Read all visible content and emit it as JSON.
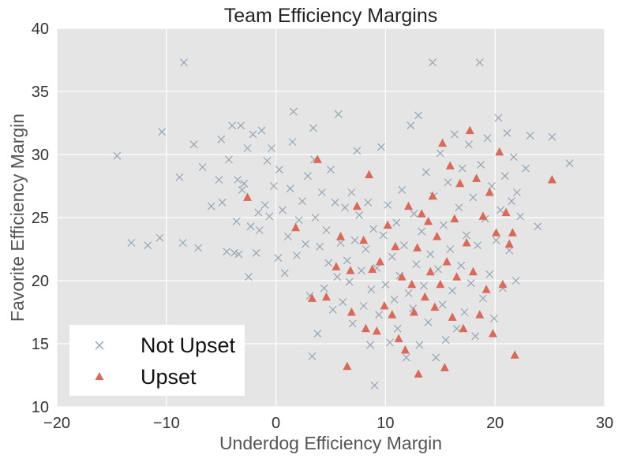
{
  "chart_data": {
    "type": "scatter",
    "title": "Team Efficiency Margins",
    "xlabel": "Underdog Efficiency Margin",
    "ylabel": "Favorite Efficiency Margin",
    "xlim": [
      -20,
      30
    ],
    "ylim": [
      10,
      40
    ],
    "xticks": [
      -20,
      -10,
      0,
      10,
      20,
      30
    ],
    "yticks": [
      10,
      15,
      20,
      25,
      30,
      35,
      40
    ],
    "grid": true,
    "legend_position": "bottom-left",
    "background": "#e5e5e5",
    "series": [
      {
        "name": "Not Upset",
        "marker": "x",
        "color": "#95a5b1",
        "points": [
          [
            -14.5,
            29.9
          ],
          [
            -13.2,
            23.0
          ],
          [
            -11.7,
            22.8
          ],
          [
            -10.6,
            23.4
          ],
          [
            -10.4,
            31.8
          ],
          [
            -8.8,
            28.2
          ],
          [
            -8.5,
            23.0
          ],
          [
            -8.4,
            37.3
          ],
          [
            -7.5,
            30.8
          ],
          [
            -7.1,
            22.6
          ],
          [
            -6.7,
            29.0
          ],
          [
            -5.9,
            25.9
          ],
          [
            -5.2,
            28.0
          ],
          [
            -5.0,
            31.2
          ],
          [
            -4.9,
            26.2
          ],
          [
            -4.5,
            22.3
          ],
          [
            -4.3,
            29.6
          ],
          [
            -4.0,
            32.3
          ],
          [
            -3.8,
            22.2
          ],
          [
            -3.6,
            24.7
          ],
          [
            -3.5,
            28.0
          ],
          [
            -3.4,
            22.1
          ],
          [
            -3.2,
            32.3
          ],
          [
            -3.1,
            27.2
          ],
          [
            -2.9,
            27.7
          ],
          [
            -2.6,
            30.5
          ],
          [
            -2.5,
            20.3
          ],
          [
            -2.3,
            24.3
          ],
          [
            -2.1,
            31.6
          ],
          [
            -1.8,
            22.2
          ],
          [
            -1.6,
            25.4
          ],
          [
            -1.5,
            24.0
          ],
          [
            -1.3,
            31.9
          ],
          [
            -1.0,
            26.0
          ],
          [
            -0.8,
            29.5
          ],
          [
            -0.6,
            25.1
          ],
          [
            -0.4,
            30.5
          ],
          [
            -0.2,
            27.5
          ],
          [
            0.2,
            21.8
          ],
          [
            0.3,
            28.8
          ],
          [
            0.6,
            25.6
          ],
          [
            0.8,
            20.6
          ],
          [
            1.1,
            23.5
          ],
          [
            1.3,
            27.3
          ],
          [
            1.5,
            31.0
          ],
          [
            1.6,
            33.4
          ],
          [
            1.9,
            22.0
          ],
          [
            2.1,
            24.8
          ],
          [
            2.4,
            26.3
          ],
          [
            2.7,
            22.9
          ],
          [
            2.9,
            28.3
          ],
          [
            3.1,
            18.8
          ],
          [
            3.3,
            14.0
          ],
          [
            3.4,
            32.1
          ],
          [
            3.5,
            29.6
          ],
          [
            3.6,
            25.0
          ],
          [
            3.8,
            15.8
          ],
          [
            4.0,
            22.7
          ],
          [
            4.2,
            27.0
          ],
          [
            4.4,
            19.4
          ],
          [
            4.6,
            24.0
          ],
          [
            4.8,
            21.4
          ],
          [
            5.0,
            28.8
          ],
          [
            5.2,
            17.7
          ],
          [
            5.4,
            26.2
          ],
          [
            5.6,
            20.3
          ],
          [
            5.7,
            33.2
          ],
          [
            5.9,
            23.0
          ],
          [
            6.1,
            18.3
          ],
          [
            6.3,
            25.8
          ],
          [
            6.5,
            21.6
          ],
          [
            6.7,
            19.9
          ],
          [
            6.9,
            27.0
          ],
          [
            7.0,
            16.6
          ],
          [
            7.2,
            23.2
          ],
          [
            7.4,
            30.3
          ],
          [
            7.6,
            25.2
          ],
          [
            7.8,
            20.8
          ],
          [
            8.0,
            18.0
          ],
          [
            8.2,
            22.5
          ],
          [
            8.4,
            26.2
          ],
          [
            8.6,
            14.9
          ],
          [
            8.7,
            19.3
          ],
          [
            8.9,
            24.1
          ],
          [
            9.0,
            11.7
          ],
          [
            9.2,
            21.0
          ],
          [
            9.4,
            17.3
          ],
          [
            9.6,
            30.6
          ],
          [
            9.8,
            23.6
          ],
          [
            10.0,
            19.7
          ],
          [
            10.2,
            26.0
          ],
          [
            10.4,
            15.1
          ],
          [
            10.6,
            21.9
          ],
          [
            10.8,
            18.5
          ],
          [
            11.0,
            24.6
          ],
          [
            11.1,
            16.2
          ],
          [
            11.3,
            20.4
          ],
          [
            11.5,
            27.2
          ],
          [
            11.7,
            22.8
          ],
          [
            11.9,
            13.9
          ],
          [
            12.1,
            19.0
          ],
          [
            12.3,
            32.3
          ],
          [
            12.5,
            17.8
          ],
          [
            12.6,
            25.3
          ],
          [
            12.8,
            21.3
          ],
          [
            13.0,
            33.1
          ],
          [
            13.1,
            14.9
          ],
          [
            13.3,
            23.9
          ],
          [
            13.5,
            19.6
          ],
          [
            13.7,
            28.6
          ],
          [
            13.9,
            16.7
          ],
          [
            14.1,
            22.1
          ],
          [
            14.3,
            37.3
          ],
          [
            14.4,
            26.7
          ],
          [
            14.6,
            13.9
          ],
          [
            14.8,
            20.9
          ],
          [
            15.0,
            30.1
          ],
          [
            15.2,
            18.1
          ],
          [
            15.3,
            24.4
          ],
          [
            15.5,
            15.3
          ],
          [
            15.7,
            27.8
          ],
          [
            15.9,
            22.5
          ],
          [
            16.1,
            19.2
          ],
          [
            16.3,
            31.6
          ],
          [
            16.5,
            16.2
          ],
          [
            16.7,
            25.8
          ],
          [
            16.9,
            21.2
          ],
          [
            17.0,
            28.9
          ],
          [
            17.2,
            17.5
          ],
          [
            17.4,
            23.6
          ],
          [
            17.6,
            30.8
          ],
          [
            17.8,
            19.8
          ],
          [
            18.0,
            26.6
          ],
          [
            18.2,
            15.6
          ],
          [
            18.4,
            22.8
          ],
          [
            18.6,
            37.3
          ],
          [
            18.7,
            29.2
          ],
          [
            18.9,
            18.6
          ],
          [
            19.1,
            24.9
          ],
          [
            19.3,
            31.3
          ],
          [
            19.5,
            20.5
          ],
          [
            19.7,
            27.5
          ],
          [
            19.9,
            17.0
          ],
          [
            20.1,
            23.2
          ],
          [
            20.3,
            32.9
          ],
          [
            20.5,
            25.6
          ],
          [
            20.7,
            19.4
          ],
          [
            20.9,
            28.3
          ],
          [
            21.1,
            31.7
          ],
          [
            21.3,
            22.4
          ],
          [
            21.5,
            26.3
          ],
          [
            21.7,
            29.8
          ],
          [
            21.9,
            20.0
          ],
          [
            22.0,
            27.0
          ],
          [
            22.3,
            25.1
          ],
          [
            22.8,
            28.9
          ],
          [
            23.2,
            31.5
          ],
          [
            23.9,
            24.3
          ],
          [
            25.2,
            31.4
          ],
          [
            26.8,
            29.3
          ]
        ]
      },
      {
        "name": "Upset",
        "marker": "^",
        "color": "#d9695a",
        "points": [
          [
            -2.6,
            26.6
          ],
          [
            1.8,
            24.2
          ],
          [
            3.3,
            18.6
          ],
          [
            3.8,
            29.6
          ],
          [
            4.6,
            18.7
          ],
          [
            5.5,
            21.1
          ],
          [
            5.9,
            23.5
          ],
          [
            6.5,
            13.2
          ],
          [
            6.8,
            20.8
          ],
          [
            6.9,
            17.5
          ],
          [
            7.4,
            25.9
          ],
          [
            8.0,
            23.2
          ],
          [
            8.2,
            16.2
          ],
          [
            8.5,
            28.4
          ],
          [
            8.8,
            20.9
          ],
          [
            9.2,
            16.0
          ],
          [
            9.5,
            21.5
          ],
          [
            9.9,
            18.0
          ],
          [
            10.2,
            24.4
          ],
          [
            10.6,
            17.3
          ],
          [
            10.9,
            22.7
          ],
          [
            11.2,
            15.4
          ],
          [
            11.5,
            20.3
          ],
          [
            11.8,
            14.5
          ],
          [
            12.1,
            25.9
          ],
          [
            12.4,
            19.7
          ],
          [
            12.6,
            17.5
          ],
          [
            12.9,
            22.6
          ],
          [
            13.0,
            12.6
          ],
          [
            13.3,
            25.3
          ],
          [
            13.6,
            18.7
          ],
          [
            13.9,
            24.7
          ],
          [
            14.1,
            20.7
          ],
          [
            14.3,
            26.7
          ],
          [
            14.5,
            17.9
          ],
          [
            14.7,
            23.5
          ],
          [
            15.0,
            19.7
          ],
          [
            15.2,
            30.9
          ],
          [
            15.4,
            13.1
          ],
          [
            15.6,
            21.5
          ],
          [
            15.9,
            29.1
          ],
          [
            16.1,
            17.1
          ],
          [
            16.3,
            24.9
          ],
          [
            16.5,
            20.3
          ],
          [
            16.8,
            27.7
          ],
          [
            17.1,
            16.2
          ],
          [
            17.4,
            23.0
          ],
          [
            17.7,
            31.9
          ],
          [
            18.0,
            20.7
          ],
          [
            18.3,
            28.1
          ],
          [
            18.6,
            17.3
          ],
          [
            18.9,
            25.1
          ],
          [
            19.2,
            19.3
          ],
          [
            19.5,
            27.0
          ],
          [
            19.8,
            15.8
          ],
          [
            20.1,
            23.8
          ],
          [
            20.4,
            30.2
          ],
          [
            20.7,
            19.7
          ],
          [
            21.0,
            25.4
          ],
          [
            21.3,
            22.9
          ],
          [
            21.6,
            23.8
          ],
          [
            21.8,
            14.1
          ],
          [
            25.2,
            28.0
          ]
        ]
      }
    ]
  }
}
